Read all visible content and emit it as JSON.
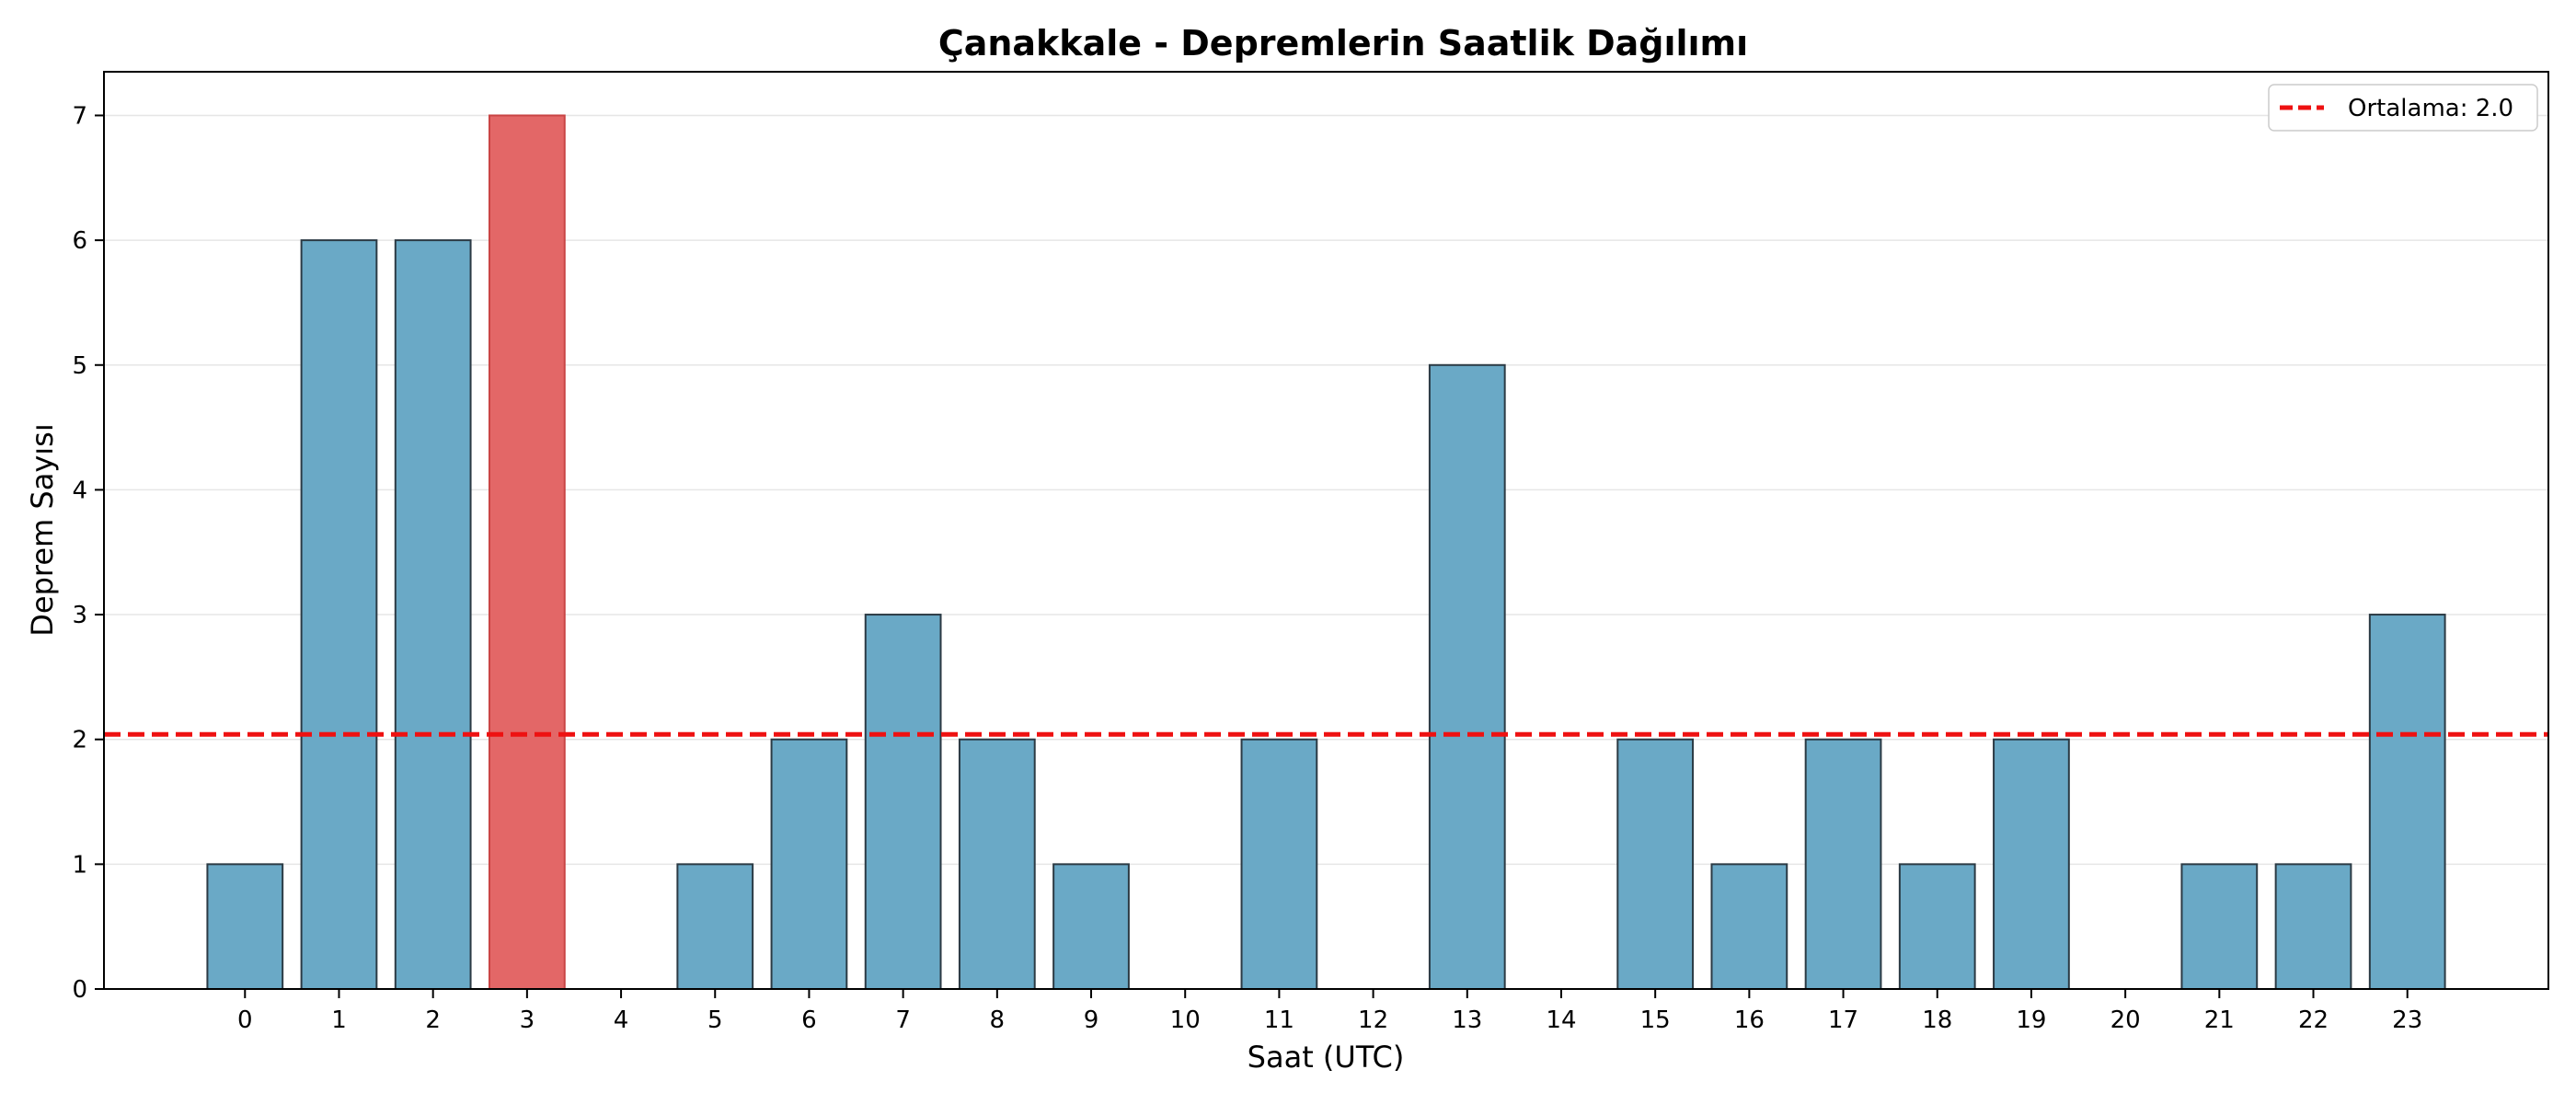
{
  "chart_data": {
    "type": "bar",
    "title": "Çanakkale - Depremlerin Saatlik Dağılımı",
    "xlabel": "Saat (UTC)",
    "ylabel": "Deprem Sayısı",
    "categories": [
      "0",
      "1",
      "2",
      "3",
      "4",
      "5",
      "6",
      "7",
      "8",
      "9",
      "10",
      "11",
      "12",
      "13",
      "14",
      "15",
      "16",
      "17",
      "18",
      "19",
      "20",
      "21",
      "22",
      "23"
    ],
    "values": [
      1,
      6,
      6,
      7,
      0,
      1,
      2,
      3,
      2,
      1,
      0,
      2,
      0,
      5,
      0,
      2,
      1,
      2,
      1,
      2,
      0,
      1,
      1,
      3
    ],
    "highlight_index": 3,
    "ylim": [
      0,
      7.35
    ],
    "yticks": [
      0,
      1,
      2,
      3,
      4,
      5,
      6,
      7
    ],
    "grid": "horizontal",
    "mean_line": {
      "value": 2.04,
      "label": "Ortalama: 2.0",
      "color": "#ee1111",
      "style": "dashed"
    },
    "legend_position": "top-right",
    "colors": {
      "bar": "#6aa9c6",
      "highlight": "#e36767",
      "edge": "#2b3a44"
    }
  }
}
